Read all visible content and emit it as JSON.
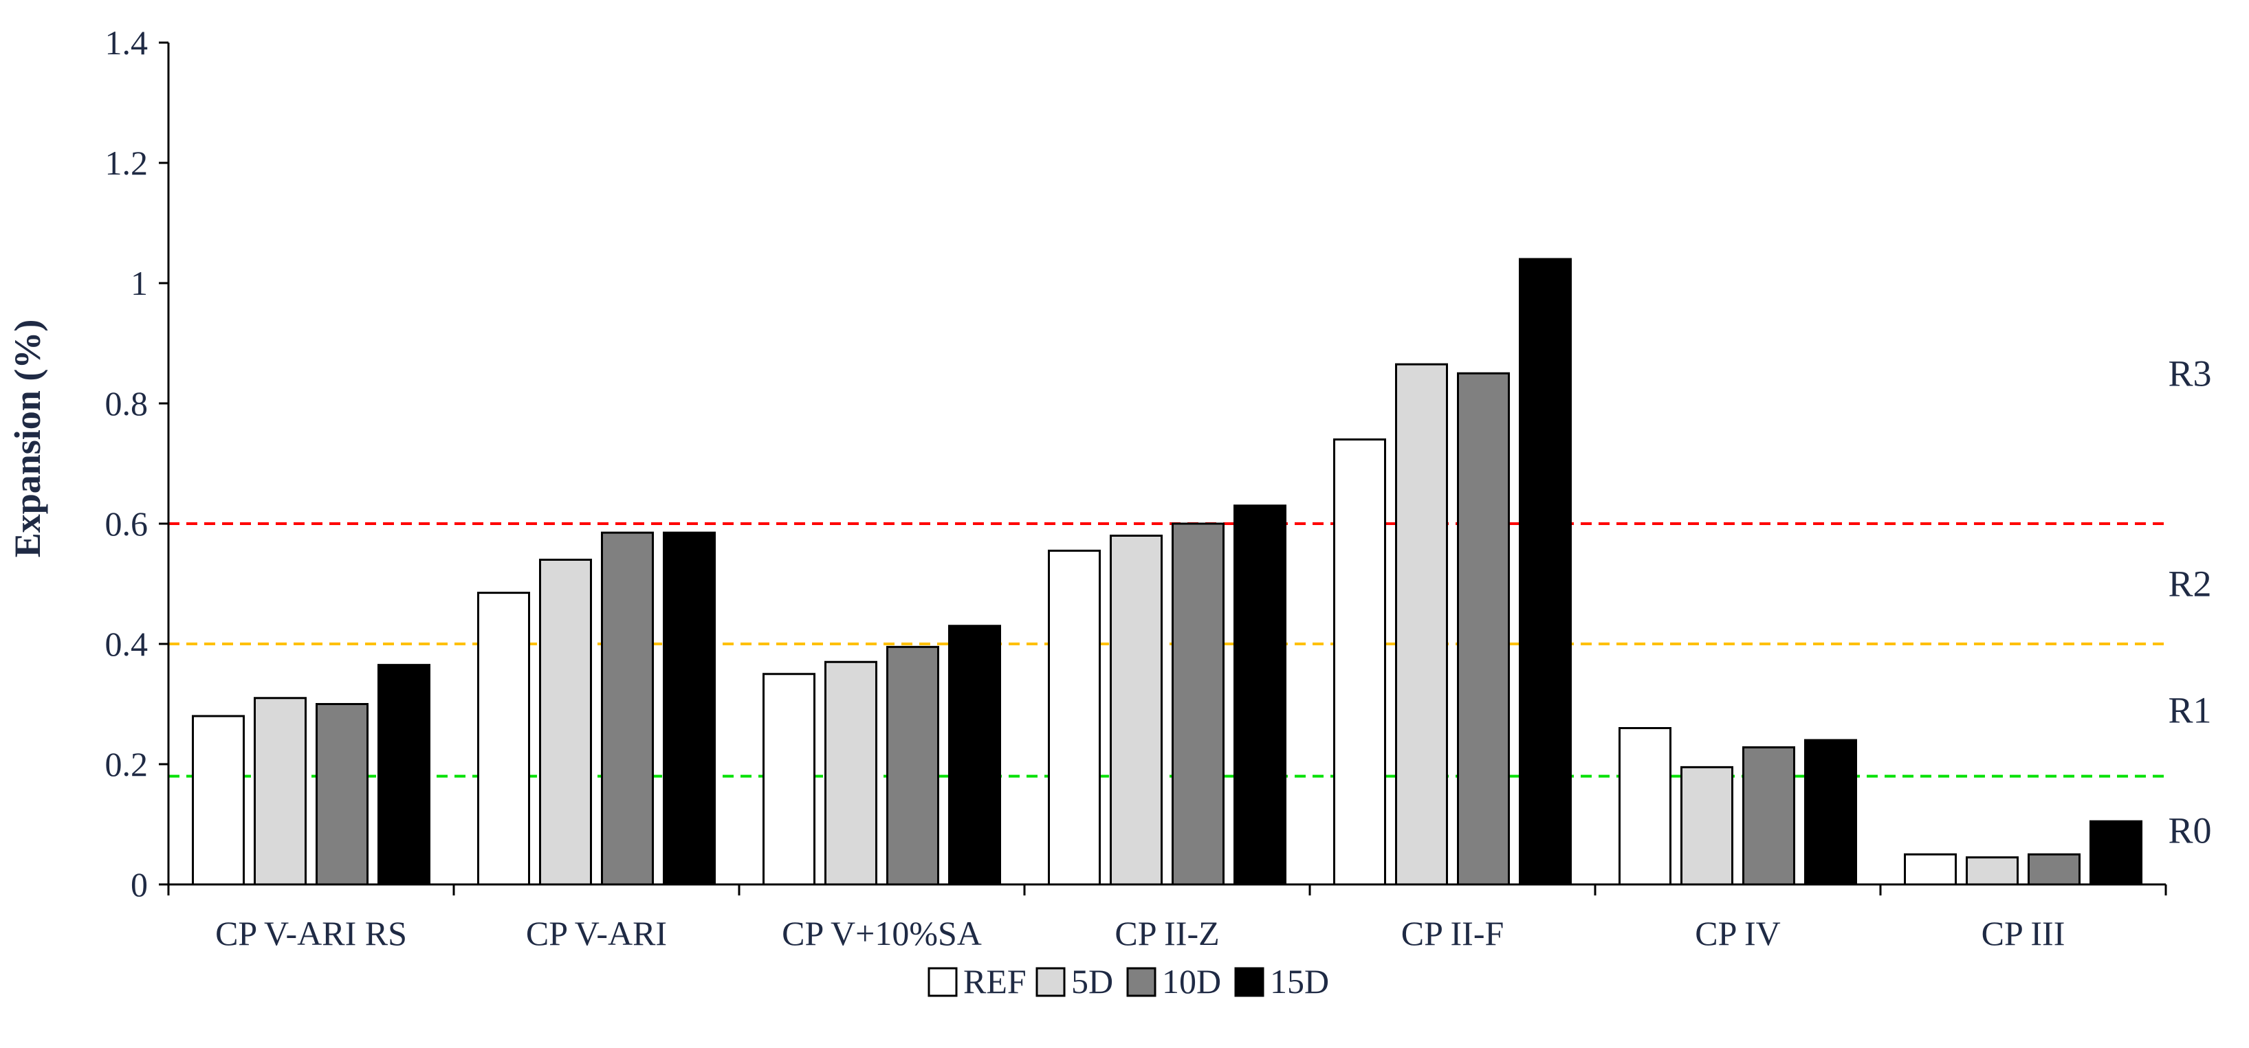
{
  "chart_data": {
    "type": "bar",
    "ylabel": "Expansion (%)",
    "ylim": [
      0,
      1.4
    ],
    "yticks": [
      "0",
      "0.2",
      "0.4",
      "0.6",
      "0.8",
      "1",
      "1.2",
      "1.4"
    ],
    "categories": [
      "CP V-ARI RS",
      "CP V-ARI",
      "CP V+10%SA",
      "CP II-Z",
      "CP II-F",
      "CP IV",
      "CP III"
    ],
    "series": [
      {
        "name": "REF",
        "color": "#ffffff",
        "values": [
          0.28,
          0.485,
          0.35,
          0.555,
          0.74,
          0.26,
          0.05
        ]
      },
      {
        "name": "5D",
        "color": "#d9d9d9",
        "values": [
          0.31,
          0.54,
          0.37,
          0.58,
          0.865,
          0.195,
          0.045
        ]
      },
      {
        "name": "10D",
        "color": "#808080",
        "values": [
          0.3,
          0.585,
          0.395,
          0.6,
          0.85,
          0.228,
          0.05
        ]
      },
      {
        "name": "15D",
        "color": "#000000",
        "values": [
          0.365,
          0.585,
          0.43,
          0.63,
          1.04,
          0.24,
          0.105
        ]
      }
    ],
    "reference_lines": [
      {
        "y": 0.6,
        "color": "#ff0000",
        "style": "dashed"
      },
      {
        "y": 0.4,
        "color": "#ffc000",
        "style": "dashed"
      },
      {
        "y": 0.18,
        "color": "#00e000",
        "style": "dashed"
      }
    ],
    "zone_labels": [
      {
        "label": "R3",
        "y": 0.85
      },
      {
        "label": "R2",
        "y": 0.5
      },
      {
        "label": "R1",
        "y": 0.29
      },
      {
        "label": "R0",
        "y": 0.09
      }
    ],
    "legend": {
      "position": "bottom",
      "entries": [
        "REF",
        "5D",
        "10D",
        "15D"
      ]
    },
    "grid": false
  }
}
